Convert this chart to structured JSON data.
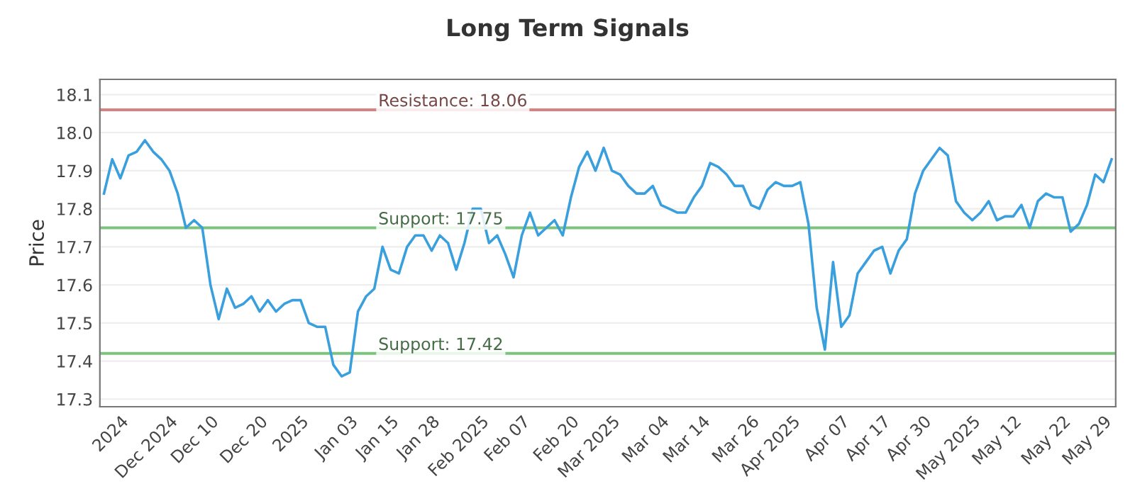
{
  "chart_data": {
    "type": "line",
    "title": "Long Term Signals",
    "ylabel": "Price",
    "categories": [
      null,
      null,
      "2024",
      null,
      null,
      null,
      null,
      null,
      "Dec 2024",
      null,
      null,
      null,
      null,
      "Dec 10",
      null,
      null,
      null,
      null,
      null,
      "Dec 20",
      null,
      null,
      null,
      null,
      "2025",
      null,
      null,
      null,
      null,
      null,
      "Jan 03",
      null,
      null,
      null,
      null,
      "Jan 15",
      null,
      null,
      null,
      null,
      "Jan 28",
      null,
      null,
      null,
      null,
      null,
      "Feb 2025",
      null,
      null,
      null,
      null,
      "Feb 07",
      null,
      null,
      null,
      null,
      null,
      "Feb 20",
      null,
      null,
      null,
      null,
      "Mar 2025",
      null,
      null,
      null,
      null,
      null,
      "Mar 04",
      null,
      null,
      null,
      null,
      "Mar 14",
      null,
      null,
      null,
      null,
      null,
      "Mar 26",
      null,
      null,
      null,
      null,
      "Apr 2025",
      null,
      null,
      null,
      null,
      null,
      "Apr 07",
      null,
      null,
      null,
      null,
      "Apr 17",
      null,
      null,
      null,
      null,
      "Apr 30",
      null,
      null,
      null,
      null,
      null,
      "May 2025",
      null,
      null,
      null,
      null,
      "May 12",
      null,
      null,
      null,
      null,
      null,
      "May 22",
      null,
      null,
      null,
      null,
      "May 29",
      null
    ],
    "series": [
      {
        "color": "#3a9fdd",
        "values": [
          17.84,
          17.93,
          17.88,
          17.94,
          17.95,
          17.98,
          17.95,
          17.93,
          17.9,
          17.84,
          17.75,
          17.77,
          17.75,
          17.6,
          17.51,
          17.59,
          17.54,
          17.55,
          17.57,
          17.53,
          17.56,
          17.53,
          17.55,
          17.56,
          17.56,
          17.5,
          17.49,
          17.49,
          17.39,
          17.36,
          17.37,
          17.53,
          17.57,
          17.59,
          17.7,
          17.64,
          17.63,
          17.7,
          17.73,
          17.73,
          17.69,
          17.73,
          17.71,
          17.64,
          17.71,
          17.8,
          17.8,
          17.71,
          17.73,
          17.68,
          17.62,
          17.73,
          17.79,
          17.73,
          17.75,
          17.77,
          17.73,
          17.83,
          17.91,
          17.95,
          17.9,
          17.96,
          17.9,
          17.89,
          17.86,
          17.84,
          17.84,
          17.86,
          17.81,
          17.8,
          17.79,
          17.79,
          17.83,
          17.86,
          17.92,
          17.91,
          17.89,
          17.86,
          17.86,
          17.81,
          17.8,
          17.85,
          17.87,
          17.86,
          17.86,
          17.87,
          17.76,
          17.54,
          17.43,
          17.66,
          17.49,
          17.52,
          17.63,
          17.66,
          17.69,
          17.7,
          17.63,
          17.69,
          17.72,
          17.84,
          17.9,
          17.93,
          17.96,
          17.94,
          17.82,
          17.79,
          17.77,
          17.79,
          17.82,
          17.77,
          17.78,
          17.78,
          17.81,
          17.75,
          17.82,
          17.84,
          17.83,
          17.83,
          17.74,
          17.76,
          17.81,
          17.89,
          17.87,
          17.93
        ]
      }
    ],
    "ylim": [
      17.28,
      18.14
    ],
    "yticks": [
      17.3,
      17.4,
      17.5,
      17.6,
      17.7,
      17.8,
      17.9,
      {
        "value": 18.0,
        "label": "18.0"
      },
      18.1
    ],
    "ref_lines": [
      {
        "axis": "y",
        "value": 18.06,
        "label": "Resistance: 18.06",
        "color": "#d9817f"
      },
      {
        "axis": "y",
        "value": 17.75,
        "label": "Support: 17.75",
        "color": "#7cc47c"
      },
      {
        "axis": "y",
        "value": 17.42,
        "label": "Support: 17.42",
        "color": "#7cc47c"
      }
    ],
    "grid": "y",
    "line_style": "solid",
    "marker": "none"
  }
}
